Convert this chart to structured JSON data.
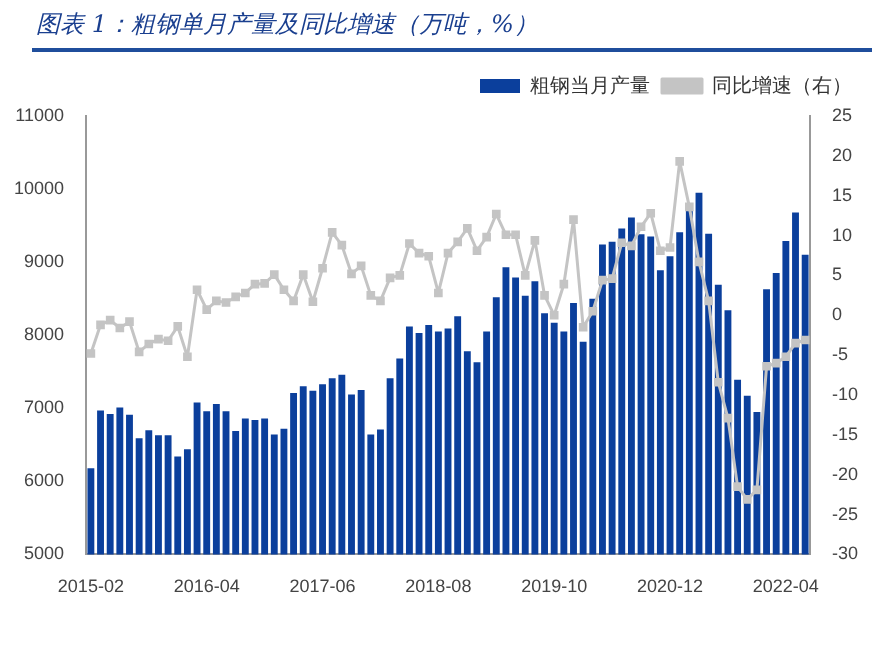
{
  "chart_data": {
    "type": "bar",
    "title": "图表 1：粗钢单月产量及同比增速（万吨，%）",
    "categories": [
      "2015-02",
      null,
      null,
      null,
      null,
      null,
      null,
      null,
      null,
      null,
      null,
      null,
      "2016-04",
      null,
      null,
      null,
      null,
      null,
      null,
      null,
      null,
      null,
      null,
      null,
      "2017-06",
      null,
      null,
      null,
      null,
      null,
      null,
      null,
      null,
      null,
      null,
      null,
      "2018-08",
      null,
      null,
      null,
      null,
      null,
      null,
      null,
      null,
      null,
      null,
      null,
      "2019-10",
      null,
      null,
      null,
      null,
      null,
      null,
      null,
      null,
      null,
      null,
      null,
      "2020-12",
      null,
      null,
      null,
      null,
      null,
      null,
      null,
      null,
      null,
      null,
      null,
      "2022-04",
      null,
      null
    ],
    "series": [
      {
        "name": "粗钢当月产量",
        "color": "#0b3f9c",
        "values": [
          6180,
          6970,
          6920,
          7010,
          6910,
          6590,
          6700,
          6630,
          6630,
          6340,
          6440,
          7080,
          6960,
          7060,
          6960,
          6690,
          6860,
          6840,
          6860,
          6640,
          6720,
          7210,
          7300,
          7240,
          7330,
          7410,
          7460,
          7190,
          7250,
          6640,
          6710,
          7410,
          7680,
          8120,
          8030,
          8140,
          8050,
          8090,
          8260,
          7780,
          7630,
          8050,
          8520,
          8930,
          8790,
          8540,
          8740,
          8300,
          8170,
          8050,
          8440,
          7910,
          8500,
          9240,
          9280,
          9460,
          9610,
          9380,
          9350,
          8890,
          9080,
          9410,
          9700,
          9950,
          9390,
          8690,
          8340,
          7390,
          7170,
          6950,
          8630,
          8850,
          9290,
          9680,
          9100
        ]
      },
      {
        "name": "同比增速（右）",
        "type": "line",
        "axis": "y2",
        "color": "#c4c4c4",
        "values": [
          -4.8,
          -1.2,
          -0.6,
          -1.6,
          -0.8,
          -4.6,
          -3.6,
          -3.0,
          -3.2,
          -1.4,
          -5.2,
          3.2,
          0.7,
          1.8,
          1.6,
          2.3,
          2.8,
          3.9,
          4.0,
          5.1,
          3.2,
          1.8,
          5.1,
          1.7,
          5.9,
          10.4,
          8.8,
          5.2,
          6.2,
          2.5,
          1.8,
          4.7,
          5.0,
          9.0,
          7.8,
          7.4,
          2.8,
          7.8,
          9.2,
          10.9,
          8.1,
          9.8,
          12.7,
          10.1,
          10.1,
          5.0,
          9.4,
          2.5,
          0.0,
          3.9,
          12.0,
          -1.5,
          0.5,
          4.4,
          4.6,
          9.1,
          8.7,
          11.1,
          12.8,
          8.1,
          8.5,
          19.3,
          13.6,
          6.7,
          1.8,
          -8.4,
          -12.9,
          -21.5,
          -23.1,
          -21.9,
          -6.4,
          -6.0,
          -5.2,
          -3.5,
          -3.1
        ]
      }
    ],
    "ylim": [
      5000,
      11000
    ],
    "yticks": [
      5000,
      6000,
      7000,
      8000,
      9000,
      10000,
      11000
    ],
    "y2lim": [
      -30,
      25
    ],
    "y2ticks": [
      -30,
      -25,
      -20,
      -15,
      -10,
      -5,
      0,
      5,
      10,
      15,
      20,
      25
    ],
    "legend": "top",
    "marker": "square",
    "line_style": "solid"
  }
}
